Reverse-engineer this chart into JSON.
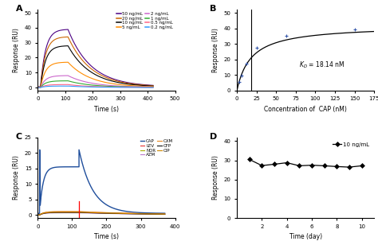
{
  "panel_A": {
    "title": "A",
    "xlabel": "Time (s)",
    "ylabel": "Response (RU)",
    "xlim": [
      0,
      500
    ],
    "ylim": [
      -2,
      52
    ],
    "xticks": [
      0,
      100,
      200,
      300,
      400,
      500
    ],
    "yticks": [
      0,
      10,
      20,
      30,
      40,
      50
    ],
    "curves": [
      {
        "label": "50 ng/mL",
        "color": "#4b0082",
        "peak": 39,
        "baseline": 0.5
      },
      {
        "label": "20 ng/mL",
        "color": "#cc6600",
        "peak": 34,
        "baseline": 0.4
      },
      {
        "label": "10 ng/mL",
        "color": "#000000",
        "peak": 28,
        "baseline": 0.3
      },
      {
        "label": "5 ng/mL",
        "color": "#ff8c00",
        "peak": 17,
        "baseline": 0.2
      },
      {
        "label": "2 ng/mL",
        "color": "#cc66cc",
        "peak": 8,
        "baseline": 0.15
      },
      {
        "label": "1 ng/mL",
        "color": "#33aa33",
        "peak": 4.5,
        "baseline": 0.1
      },
      {
        "label": "0.5 ng/mL",
        "color": "#ff6688",
        "peak": 2,
        "baseline": 0.05
      },
      {
        "label": "0.2 ng/mL",
        "color": "#3399ff",
        "peak": 1,
        "baseline": 0.02
      }
    ],
    "assoc_start": 10,
    "assoc_end": 110,
    "dissoc_end": 420,
    "k_on": 0.055,
    "k_off": 0.012
  },
  "panel_B": {
    "title": "B",
    "xlabel": "Concentration of  CAP (nM)",
    "ylabel": "Response (RU)",
    "xlim": [
      0,
      175
    ],
    "ylim": [
      0,
      52
    ],
    "xticks": [
      0,
      25,
      50,
      75,
      100,
      125,
      150,
      175
    ],
    "yticks": [
      0,
      10,
      20,
      30,
      40,
      50
    ],
    "kd_text": "$\\mathit{K_D}$ = 18.14 nM",
    "kd_line_x": 18.14,
    "Rmax": 42.0,
    "KD": 18.14,
    "data_x": [
      3.125,
      6.25,
      12.5,
      25,
      62.5,
      150
    ],
    "data_y": [
      5.5,
      9.5,
      17.5,
      27.5,
      35.0,
      39.5
    ]
  },
  "panel_C": {
    "title": "C",
    "xlabel": "Time (s)",
    "ylabel": "Response (RU)",
    "xlim": [
      0,
      400
    ],
    "ylim": [
      -1,
      25
    ],
    "xticks": [
      0,
      100,
      200,
      300,
      400
    ],
    "yticks": [
      0,
      5,
      10,
      15,
      20,
      25
    ],
    "red_line_x": 120,
    "assoc_start": 5,
    "assoc_end": 120,
    "dissoc_end": 370,
    "curves": [
      {
        "label": "CAP",
        "color": "#1f4e9c",
        "plateau": 15.5,
        "spike": 21.0,
        "k_on": 0.1,
        "k_off": 0.025,
        "baseline": 0.5
      },
      {
        "label": "LEV",
        "color": "#e63030",
        "plateau": 1.0,
        "spike": 1.0,
        "k_on": 0.08,
        "k_off": 0.005,
        "baseline": 0.0
      },
      {
        "label": "NOR",
        "color": "#aaaa00",
        "plateau": 0.9,
        "spike": 0.9,
        "k_on": 0.08,
        "k_off": 0.005,
        "baseline": 0.0
      },
      {
        "label": "AZM",
        "color": "#bb77cc",
        "plateau": 0.7,
        "spike": 0.7,
        "k_on": 0.08,
        "k_off": 0.005,
        "baseline": 0.0
      },
      {
        "label": "CXM",
        "color": "#e88820",
        "plateau": 1.1,
        "spike": 1.1,
        "k_on": 0.08,
        "k_off": 0.005,
        "baseline": 0.0
      },
      {
        "label": "CFP",
        "color": "#111111",
        "plateau": 0.8,
        "spike": 0.8,
        "k_on": 0.08,
        "k_off": 0.005,
        "baseline": 0.0
      },
      {
        "label": "CIP",
        "color": "#cc8800",
        "plateau": 0.9,
        "spike": 0.9,
        "k_on": 0.08,
        "k_off": 0.005,
        "baseline": 0.0
      }
    ]
  },
  "panel_D": {
    "title": "D",
    "xlabel": "Time (day)",
    "ylabel": "Response (RU)",
    "xlim": [
      0,
      11
    ],
    "ylim": [
      0,
      42
    ],
    "xticks": [
      2,
      4,
      6,
      8,
      10
    ],
    "yticks": [
      0,
      10,
      20,
      30,
      40
    ],
    "legend_label": "10 ng/mL",
    "data_x": [
      1,
      2,
      3,
      4,
      5,
      6,
      7,
      8,
      9,
      10
    ],
    "data_y": [
      30.5,
      27.3,
      28.0,
      28.8,
      27.2,
      27.5,
      27.2,
      26.8,
      26.5,
      27.2
    ],
    "color": "#000000",
    "marker": "D"
  }
}
